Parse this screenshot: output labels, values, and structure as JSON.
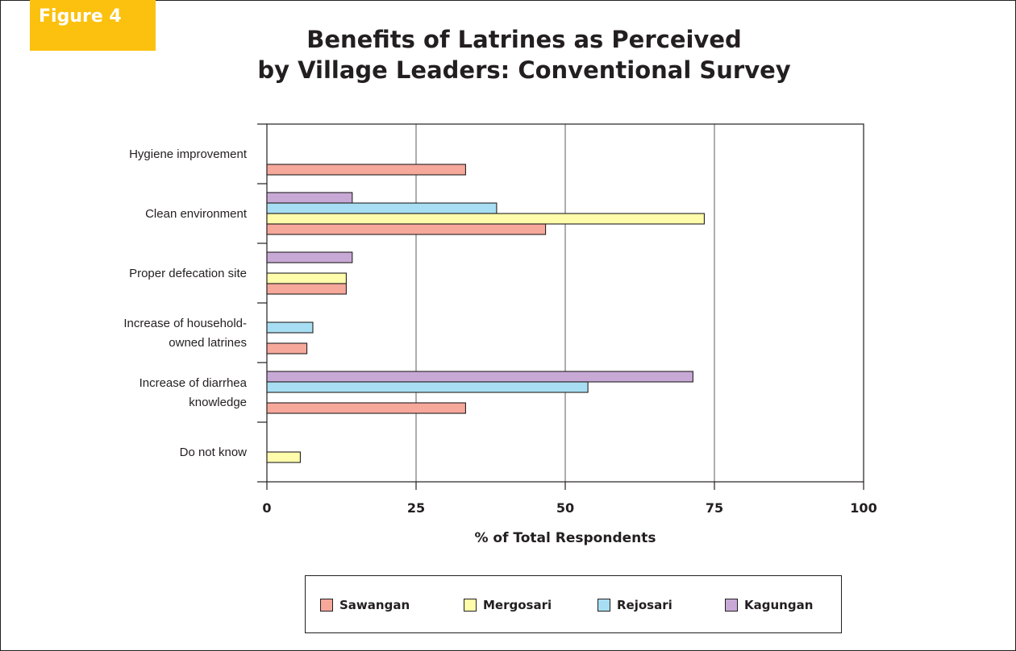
{
  "figure_label": "Figure 4",
  "title_line1": "Benefits of Latrines as Perceived",
  "title_line2": "by Village Leaders: Conventional Survey",
  "chart_data": {
    "type": "bar",
    "orientation": "horizontal",
    "title": "Benefits of Latrines as Perceived by Village Leaders: Conventional Survey",
    "xlabel": "% of Total Respondents",
    "xlim": [
      0,
      100
    ],
    "xticks": [
      "0",
      "25",
      "50",
      "75",
      "100"
    ],
    "grid": "vertical",
    "legend_position": "bottom",
    "categories": [
      [
        "Hygiene improvement"
      ],
      [
        "Clean environment"
      ],
      [
        "Proper defecation site"
      ],
      [
        "Increase of household-",
        "owned latrines"
      ],
      [
        "Increase of diarrhea",
        "knowledge"
      ],
      [
        "Do not know"
      ]
    ],
    "series": [
      {
        "name": "Sawangan",
        "color": "#f6a89b",
        "values": [
          33.3,
          46.7,
          13.3,
          6.7,
          33.3,
          null
        ]
      },
      {
        "name": "Mergosari",
        "color": "#fffcab",
        "values": [
          null,
          73.3,
          13.3,
          null,
          null,
          5.6
        ]
      },
      {
        "name": "Rejosari",
        "color": "#a8def3",
        "values": [
          null,
          38.5,
          null,
          7.7,
          53.8,
          null
        ]
      },
      {
        "name": "Kagungan",
        "color": "#c8a9d6",
        "values": [
          null,
          14.3,
          14.3,
          null,
          71.4,
          null
        ]
      }
    ]
  }
}
